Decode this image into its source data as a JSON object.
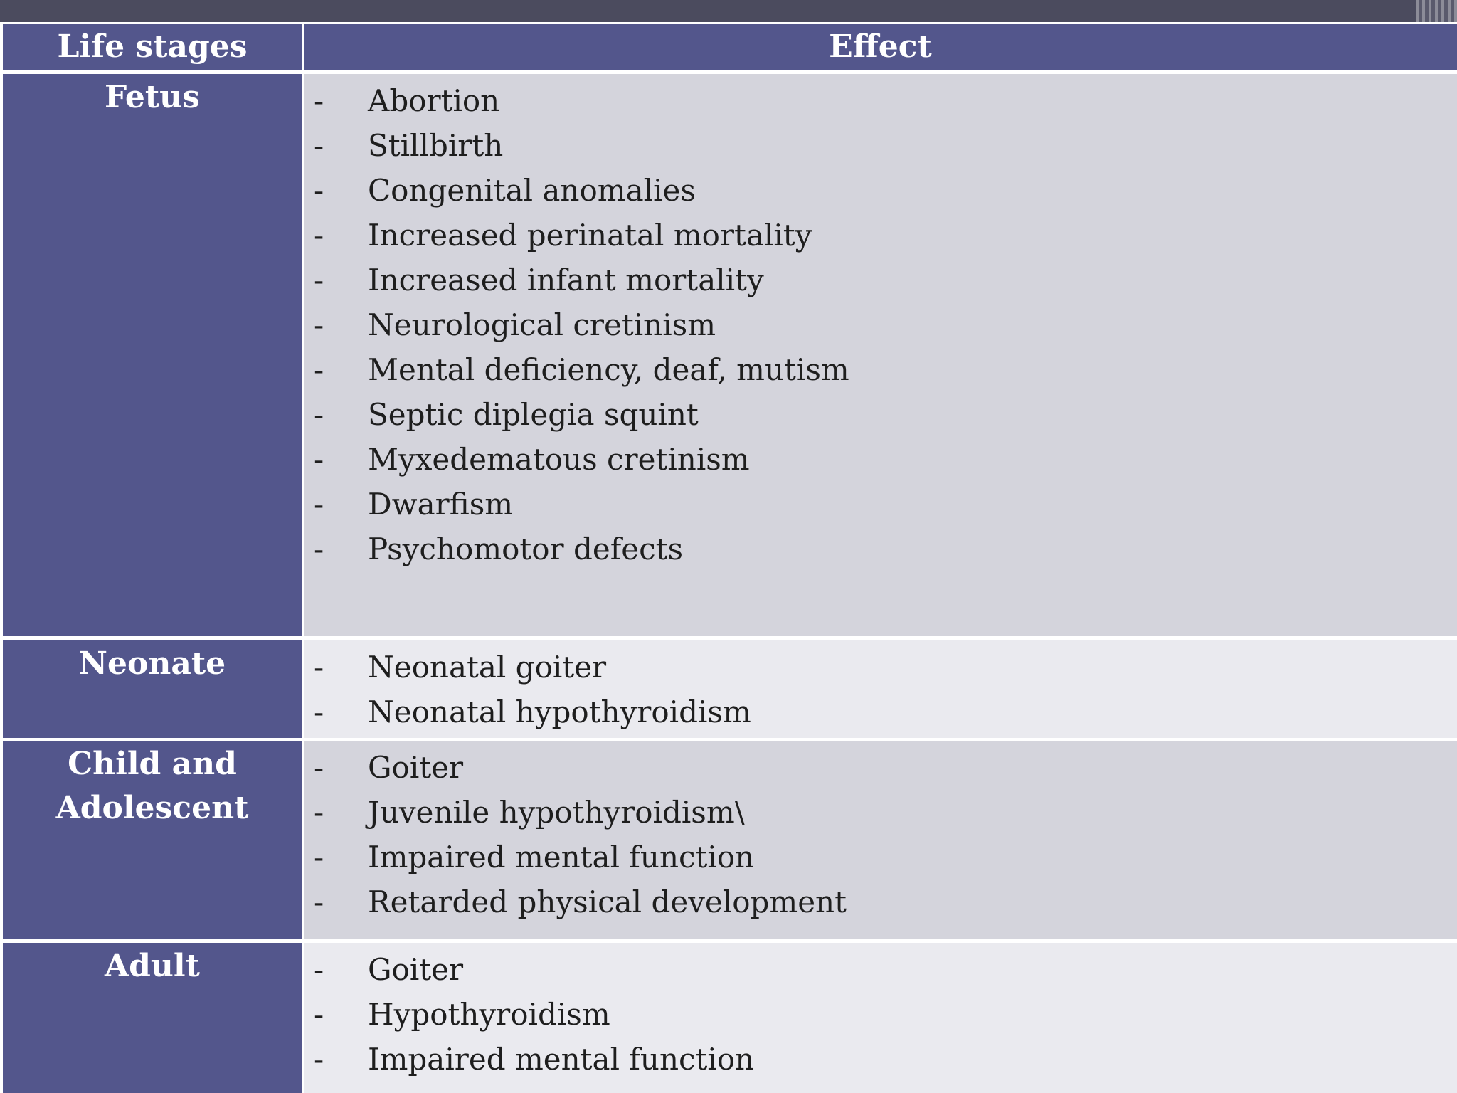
{
  "table": {
    "headers": {
      "stage": "Life stages",
      "effect": "Effect"
    },
    "bullet": "-",
    "rows": [
      {
        "stage": "Fetus",
        "effects": [
          "Abortion",
          "Stillbirth",
          "Congenital anomalies",
          "Increased perinatal mortality",
          "Increased infant mortality",
          "Neurological cretinism",
          "Mental deficiency, deaf, mutism",
          "Septic diplegia squint",
          "Myxedematous cretinism",
          "Dwarfism",
          "Psychomotor defects"
        ]
      },
      {
        "stage": "Neonate",
        "effects": [
          "Neonatal goiter",
          "Neonatal hypothyroidism"
        ]
      },
      {
        "stage": "Child and Adolescent",
        "effects": [
          "Goiter",
          "Juvenile hypothyroidism\\",
          "Impaired mental function",
          "Retarded physical development"
        ]
      },
      {
        "stage": "Adult",
        "effects": [
          "Goiter",
          "Hypothyroidism",
          "Impaired mental function"
        ]
      }
    ]
  },
  "colors": {
    "header_bg": "#53568c",
    "stage_bg": "#53568c",
    "effect_bg_dark": "#d4d4dc",
    "effect_bg_light": "#eaeaef",
    "top_bar": "#4b4b5e"
  }
}
